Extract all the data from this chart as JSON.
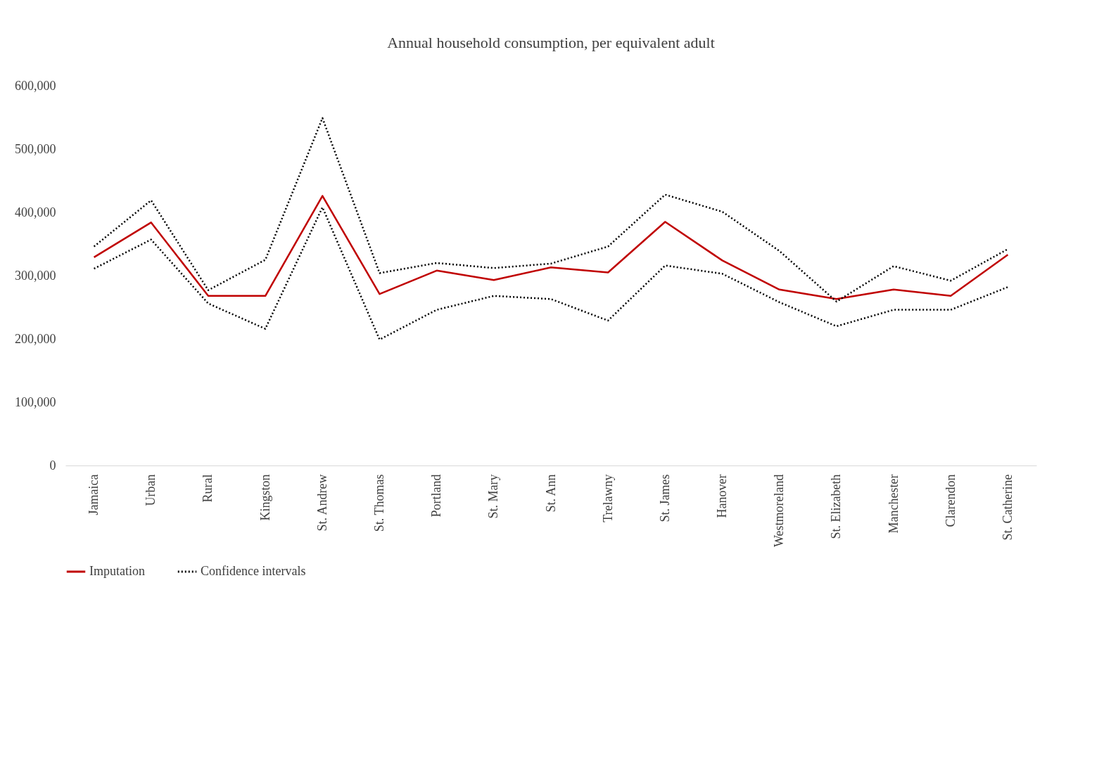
{
  "chart_data": {
    "type": "line",
    "title": "Annual household consumption, per equivalent adult",
    "categories": [
      "Jamaica",
      "Urban",
      "Rural",
      "Kingston",
      "St. Andrew",
      "St. Thomas",
      "Portland",
      "St. Mary",
      "St. Ann",
      "Trelawny",
      "St. James",
      "Hanover",
      "Westmoreland",
      "St. Elizabeth",
      "Manchester",
      "Clarendon",
      "St. Catherine"
    ],
    "series": [
      {
        "name": "Imputation",
        "color": "#c00000",
        "line_style": "solid",
        "values": [
          329000,
          384000,
          268000,
          268000,
          426000,
          271000,
          308000,
          293000,
          313000,
          305000,
          385000,
          324000,
          278000,
          263000,
          278000,
          268000,
          333000
        ]
      },
      {
        "name": "Confidence intervals",
        "color": "#000000",
        "line_style": "dotted",
        "values": [
          346000,
          419000,
          277000,
          325000,
          549000,
          304000,
          320000,
          312000,
          319000,
          346000,
          428000,
          401000,
          339000,
          259000,
          315000,
          292000,
          342000
        ]
      },
      {
        "color": "#000000",
        "line_style": "dotted",
        "values": [
          311000,
          357000,
          256000,
          216000,
          408000,
          199000,
          246000,
          268000,
          263000,
          229000,
          316000,
          303000,
          258000,
          220000,
          246000,
          246000,
          282000
        ]
      }
    ],
    "ylim": [
      0,
      600000
    ],
    "yticks": [
      0,
      {
        "value": 100000,
        "label": "100,000"
      },
      {
        "value": 200000,
        "label": "200,000"
      },
      {
        "value": 300000,
        "label": "300,000"
      },
      {
        "value": 400000,
        "label": "400,000"
      },
      {
        "value": 500000,
        "label": "500,000"
      },
      {
        "value": 600000,
        "label": "600,000"
      }
    ],
    "grid": false,
    "legend": "bottom",
    "marker": "none"
  }
}
